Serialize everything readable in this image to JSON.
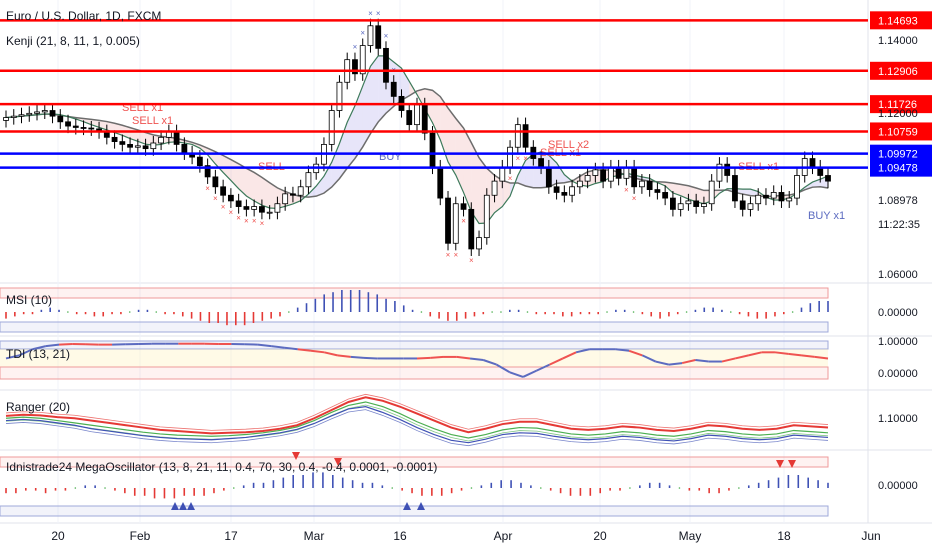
{
  "header": {
    "symbol": "Euro / U.S. Dollar, 1D, FXCM",
    "indicator": "Kenji (21, 8, 11, 1, 0.005)"
  },
  "axis": {
    "price_ticks": [
      "1.14000",
      "1.12000",
      "1.08978",
      "11:22:35",
      "1.06000"
    ],
    "x_ticks": [
      "20",
      "Feb",
      "17",
      "Mar",
      "16",
      "Apr",
      "20",
      "May",
      "18",
      "Jun"
    ]
  },
  "levels": [
    {
      "label": "1.14693",
      "color": "#ff0000",
      "price": 1.14693
    },
    {
      "label": "1.12906",
      "color": "#ff0000",
      "price": 1.12906
    },
    {
      "label": "1.11726",
      "color": "#ff0000",
      "price": 1.11726
    },
    {
      "label": "1.10759",
      "color": "#ff0000",
      "price": 1.10759
    },
    {
      "label": "1.09972",
      "color": "#0000ff",
      "price": 1.09972
    },
    {
      "label": "1.09478",
      "color": "#0000ff",
      "price": 1.09478
    }
  ],
  "signals": [
    {
      "text": "SELL x1",
      "color": "#ef5350"
    },
    {
      "text": "SELL x1",
      "color": "#ef5350"
    },
    {
      "text": "SELL",
      "color": "#ef5350"
    },
    {
      "text": "BUY",
      "color": "#5c6bc0"
    },
    {
      "text": "SELL x2",
      "color": "#ef5350"
    },
    {
      "text": "SELL x1",
      "color": "#ef5350"
    },
    {
      "text": "SELL x1",
      "color": "#ef5350"
    },
    {
      "text": "BUY x1",
      "color": "#5c6bc0"
    }
  ],
  "panes": {
    "msi": {
      "label": "MSI (10)",
      "ticks": [
        "0.00000"
      ]
    },
    "tdi": {
      "label": "TDI (13, 21)",
      "ticks": [
        "1.00000",
        "0.00000"
      ]
    },
    "ranger": {
      "label": "Ranger (20)",
      "ticks": [
        "1.10000"
      ]
    },
    "mega": {
      "label": "Idnistrade24 MegaOscillator (13, 8, 21, 11, 0.4, 70, 30, 0.4, -0.4, 0.0001, -0.0001)",
      "ticks": [
        "0.00000"
      ]
    }
  },
  "colors": {
    "up_candle": "#ffffff",
    "down_candle": "#000000",
    "sell_mark": "#ef5350",
    "buy_mark": "#5c6bc0",
    "msi_pos": "#3f51b5",
    "msi_neg": "#e53935",
    "tdi_pos": "#5c6bc0",
    "tdi_neg": "#ef5350",
    "tdi_mid": "#4caf50"
  },
  "chart_data": [
    {
      "type": "candlestick",
      "title": "Euro / U.S. Dollar, 1D, FXCM",
      "ylim": [
        1.055,
        1.152
      ],
      "x_range": [
        "Jan",
        "Jun"
      ],
      "close": [
        1.1125,
        1.113,
        1.1135,
        1.114,
        1.1145,
        1.115,
        1.113,
        1.111,
        1.1095,
        1.109,
        1.1088,
        1.1085,
        1.1075,
        1.1055,
        1.104,
        1.103,
        1.102,
        1.1025,
        1.1015,
        1.1035,
        1.1055,
        1.1075,
        1.103,
        1.1,
        1.0985,
        1.0955,
        1.0915,
        1.088,
        1.085,
        1.083,
        1.081,
        1.08,
        1.081,
        1.079,
        1.079,
        1.082,
        1.0855,
        1.085,
        1.088,
        1.093,
        1.096,
        1.103,
        1.115,
        1.125,
        1.133,
        1.128,
        1.138,
        1.145,
        1.137,
        1.125,
        1.12,
        1.115,
        1.11,
        1.117,
        1.107,
        1.095,
        1.084,
        1.068,
        1.082,
        1.08,
        1.066,
        1.07,
        1.085,
        1.09,
        1.095,
        1.102,
        1.11,
        1.102,
        1.098,
        1.095,
        1.088,
        1.086,
        1.085,
        1.088,
        1.09,
        1.092,
        1.094,
        1.09,
        1.095,
        1.091,
        1.095,
        1.088,
        1.09,
        1.087,
        1.086,
        1.084,
        1.08,
        1.082,
        1.083,
        1.081,
        1.082,
        1.09,
        1.096,
        1.092,
        1.083,
        1.08,
        1.082,
        1.085,
        1.084,
        1.086,
        1.083,
        1.084,
        1.092,
        1.098,
        1.095,
        1.092,
        1.09
      ],
      "signals": [
        "SELL x1",
        "SELL x1",
        "SELL",
        "BUY",
        "SELL x2",
        "SELL x1",
        "SELL x1",
        "BUY x1"
      ]
    },
    {
      "type": "bar",
      "title": "MSI (10)",
      "values": [
        -3,
        -2,
        -1,
        -1,
        1,
        2,
        1,
        0,
        -1,
        -1,
        -2,
        -2,
        -1,
        -1,
        0,
        1,
        1,
        0,
        -1,
        -1,
        -2,
        -3,
        -4,
        -5,
        -5,
        -6,
        -6,
        -6,
        -5,
        -4,
        -3,
        -2,
        0,
        2,
        4,
        6,
        8,
        9,
        10,
        10,
        10,
        9,
        8,
        6,
        5,
        3,
        1,
        0,
        -2,
        -3,
        -4,
        -4,
        -3,
        -2,
        -1,
        0,
        0,
        1,
        1,
        0,
        -1,
        -1,
        -1,
        -2,
        -2,
        -1,
        -1,
        -1,
        0,
        1,
        1,
        0,
        -1,
        -2,
        -3,
        -2,
        -1,
        0,
        1,
        2,
        2,
        1,
        0,
        -1,
        -2,
        -3,
        -3,
        -2,
        -1,
        0,
        2,
        4,
        5,
        5
      ],
      "ylim": [
        -10,
        10
      ]
    },
    {
      "type": "line",
      "title": "TDI (13, 21)",
      "values": [
        0.5,
        0.6,
        0.8,
        0.9,
        0.95,
        0.97,
        0.96,
        0.95,
        0.95,
        0.96,
        0.97,
        0.98,
        0.98,
        0.98,
        0.98,
        0.98,
        0.97,
        0.97,
        0.96,
        0.95,
        0.9,
        0.85,
        0.8,
        0.75,
        0.7,
        0.6,
        0.55,
        0.52,
        0.5,
        0.5,
        0.5,
        0.5,
        0.52,
        0.55,
        0.55,
        0.5,
        0.45,
        0.3,
        0.05,
        -0.1,
        0.1,
        0.3,
        0.5,
        0.7,
        0.8,
        0.8,
        0.8,
        0.75,
        0.6,
        0.4,
        0.3,
        0.35,
        0.45,
        0.4,
        0.4,
        0.5,
        0.6,
        0.7,
        0.7,
        0.65,
        0.6,
        0.55,
        0.5
      ],
      "ylim": [
        -0.2,
        1.1
      ]
    },
    {
      "type": "line",
      "title": "Ranger (20)",
      "series": [
        {
          "values": [
            1.11,
            1.111,
            1.1105,
            1.109,
            1.108,
            1.106,
            1.104,
            1.102,
            1.1,
            1.098,
            1.097,
            1.096,
            1.095,
            1.0955,
            1.096,
            1.097,
            1.099,
            1.102,
            1.108,
            1.115,
            1.122,
            1.126,
            1.123,
            1.118,
            1.112,
            1.106,
            1.1,
            1.096,
            1.099,
            1.103,
            1.105,
            1.105,
            1.102,
            1.099,
            1.098,
            1.099,
            1.101,
            1.1,
            1.098,
            1.097,
            1.099,
            1.102,
            1.101,
            1.099,
            1.098,
            1.099,
            1.102,
            1.101,
            1.1
          ]
        },
        {
          "values": [
            1.108,
            1.109,
            1.108,
            1.106,
            1.104,
            1.102,
            1.1,
            1.098,
            1.096,
            1.0945,
            1.0935,
            1.093,
            1.0925,
            1.093,
            1.094,
            1.0955,
            1.0975,
            1.1005,
            1.106,
            1.113,
            1.119,
            1.122,
            1.118,
            1.112,
            1.105,
            1.099,
            1.094,
            1.091,
            1.094,
            1.098,
            1.1,
            1.0995,
            1.097,
            1.0945,
            1.0935,
            1.0945,
            1.0965,
            1.0955,
            1.0935,
            1.0925,
            1.0945,
            1.0975,
            1.0965,
            1.0945,
            1.0935,
            1.0945,
            1.0975,
            1.0965,
            1.0955
          ]
        },
        {
          "values": [
            1.106,
            1.107,
            1.106,
            1.104,
            1.102,
            1.099,
            1.097,
            1.095,
            1.093,
            1.0915,
            1.0905,
            1.09,
            1.0895,
            1.0905,
            1.0915,
            1.0935,
            1.0955,
            1.0985,
            1.1035,
            1.11,
            1.116,
            1.118,
            1.113,
            1.107,
            1.1,
            1.094,
            1.089,
            1.087,
            1.09,
            1.094,
            1.0955,
            1.095,
            1.0925,
            1.0905,
            1.0895,
            1.0905,
            1.0925,
            1.0915,
            1.0895,
            1.0885,
            1.0905,
            1.0935,
            1.0925,
            1.0905,
            1.0895,
            1.0905,
            1.0935,
            1.0925,
            1.0915
          ]
        }
      ]
    },
    {
      "type": "bar",
      "title": "Idnistrade24 MegaOscillator (13, 8, 21, 11, 0.4, 70, 30, 0.4, -0.4, 0.0001, -0.0001)",
      "values": [
        -2,
        -2,
        -1,
        -1,
        -2,
        -1,
        -1,
        0,
        1,
        1,
        0,
        -1,
        -2,
        -3,
        -3,
        -4,
        -4,
        -4,
        -3,
        -3,
        -3,
        -2,
        -1,
        0,
        1,
        2,
        2,
        3,
        4,
        5,
        5,
        6,
        6,
        5,
        4,
        3,
        2,
        2,
        1,
        0,
        -1,
        -2,
        -3,
        -3,
        -3,
        -2,
        -1,
        0,
        1,
        2,
        3,
        3,
        2,
        1,
        0,
        -1,
        -2,
        -3,
        -3,
        -3,
        -2,
        -1,
        -1,
        0,
        1,
        2,
        2,
        1,
        0,
        -1,
        -1,
        -2,
        -2,
        -1,
        0,
        1,
        2,
        3,
        4,
        5,
        5,
        4,
        3,
        2
      ],
      "ylim": [
        -8,
        8
      ]
    }
  ]
}
